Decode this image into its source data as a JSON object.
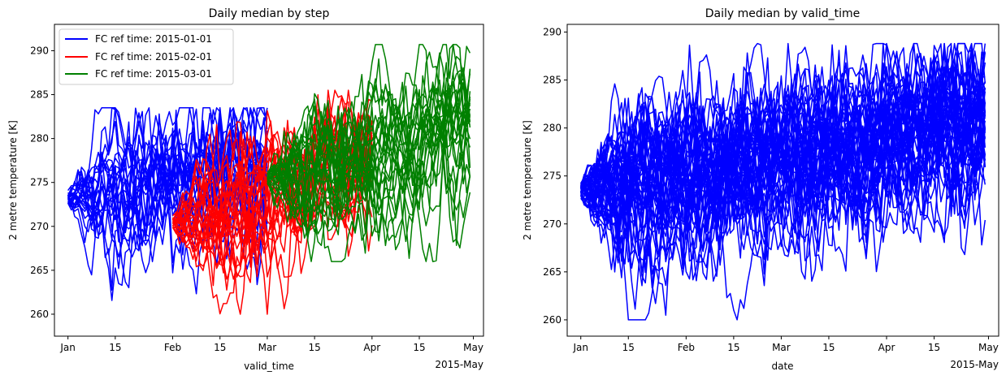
{
  "chart_data": [
    {
      "type": "line",
      "title": "Daily median by step",
      "xlabel": "valid_time",
      "ylabel": "2 metre temperature [K]",
      "xlim": [
        "2014-12-28",
        "2015-05-04"
      ],
      "ylim": [
        257.5,
        293
      ],
      "x_ticks": [
        {
          "date": "2015-01-01",
          "label": "Jan"
        },
        {
          "date": "2015-01-15",
          "label": "15"
        },
        {
          "date": "2015-02-01",
          "label": "Feb"
        },
        {
          "date": "2015-02-15",
          "label": "15"
        },
        {
          "date": "2015-03-01",
          "label": "Mar"
        },
        {
          "date": "2015-03-15",
          "label": "15"
        },
        {
          "date": "2015-04-01",
          "label": "Apr"
        },
        {
          "date": "2015-04-15",
          "label": "15"
        },
        {
          "date": "2015-05-01",
          "label": "May"
        }
      ],
      "x_offset_label": "2015-May",
      "y_ticks": [
        260,
        265,
        270,
        275,
        280,
        285,
        290
      ],
      "grid": false,
      "legend_position": "upper-left",
      "member_count_per_group": 25,
      "series": [
        {
          "name": "FC ref time: 2015-01-01",
          "color": "#0000ff",
          "x_start": "2015-01-01",
          "x_end": "2015-03-01",
          "median_start": 273.0,
          "median_end": 276.5,
          "spread": [
            257.5,
            284.0
          ]
        },
        {
          "name": "FC ref time: 2015-02-01",
          "color": "#ff0000",
          "x_start": "2015-02-01",
          "x_end": "2015-04-01",
          "median_start": 270.5,
          "median_end": 277.5,
          "spread": [
            259.5,
            286.0
          ]
        },
        {
          "name": "FC ref time: 2015-03-01",
          "color": "#008000",
          "x_start": "2015-03-01",
          "x_end": "2015-04-30",
          "median_start": 275.5,
          "median_end": 281.5,
          "spread": [
            265.5,
            291.2
          ]
        }
      ]
    },
    {
      "type": "line",
      "title": "Daily median by valid_time",
      "xlabel": "date",
      "ylabel": "2 metre temperature [K]",
      "xlim": [
        "2014-12-28",
        "2015-05-04"
      ],
      "ylim": [
        258.3,
        290.8
      ],
      "x_ticks": [
        {
          "date": "2015-01-01",
          "label": "Jan"
        },
        {
          "date": "2015-01-15",
          "label": "15"
        },
        {
          "date": "2015-02-01",
          "label": "Feb"
        },
        {
          "date": "2015-02-15",
          "label": "15"
        },
        {
          "date": "2015-03-01",
          "label": "Mar"
        },
        {
          "date": "2015-03-15",
          "label": "15"
        },
        {
          "date": "2015-04-01",
          "label": "Apr"
        },
        {
          "date": "2015-04-15",
          "label": "15"
        },
        {
          "date": "2015-05-01",
          "label": "May"
        }
      ],
      "x_offset_label": "2015-May",
      "y_ticks": [
        260,
        265,
        270,
        275,
        280,
        285,
        290
      ],
      "grid": false,
      "member_count": 50,
      "series": [
        {
          "color": "#0000ff",
          "x_start": "2015-01-01",
          "x_end": "2015-04-30",
          "median_start": 273.5,
          "median_end": 281.0,
          "spread": [
            259.5,
            289.3
          ]
        }
      ]
    }
  ]
}
